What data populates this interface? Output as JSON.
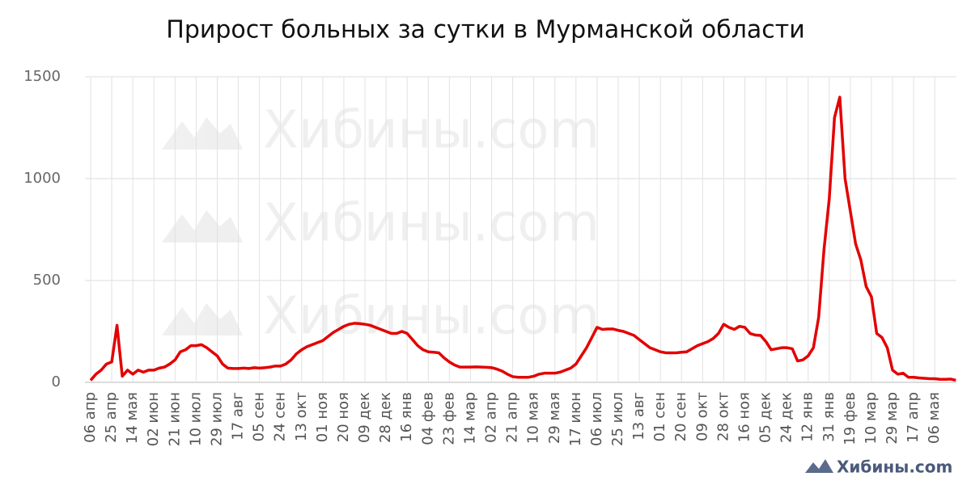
{
  "chart_data": {
    "type": "line",
    "title": "Прирост больных за сутки в Мурманской области",
    "watermark": "Хибины.com",
    "categories": [
      "06 апр",
      null,
      null,
      null,
      "25 апр",
      null,
      null,
      null,
      "14 мая",
      null,
      null,
      null,
      "02 июн",
      null,
      null,
      null,
      "21 июн",
      null,
      null,
      null,
      "10 июл",
      null,
      null,
      null,
      "29 июл",
      null,
      null,
      null,
      "17 авг",
      null,
      null,
      null,
      "05 сен",
      null,
      null,
      null,
      "24 сен",
      null,
      null,
      null,
      "13 окт",
      null,
      null,
      null,
      "01 ноя",
      null,
      null,
      null,
      "20 ноя",
      null,
      null,
      null,
      "09 дек",
      null,
      null,
      null,
      "28 дек",
      null,
      null,
      null,
      "16 янв",
      null,
      null,
      null,
      "04 фев",
      null,
      null,
      null,
      "23 фев",
      null,
      null,
      null,
      "14 мар",
      null,
      null,
      null,
      "02 апр",
      null,
      null,
      null,
      "21 апр",
      null,
      null,
      null,
      "10 мая",
      null,
      null,
      null,
      "29 мая",
      null,
      null,
      null,
      "17 июн",
      null,
      null,
      null,
      "06 июл",
      null,
      null,
      null,
      "25 июл",
      null,
      null,
      null,
      "13 авг",
      null,
      null,
      null,
      "01 сен",
      null,
      null,
      null,
      "20 сен",
      null,
      null,
      null,
      "09 окт",
      null,
      null,
      null,
      "28 окт",
      null,
      null,
      null,
      "16 ноя",
      null,
      null,
      null,
      "05 дек",
      null,
      null,
      null,
      "24 дек",
      null,
      null,
      null,
      "12 янв",
      null,
      null,
      null,
      "31 янв",
      null,
      null,
      null,
      "19 фев",
      null,
      null,
      null,
      "10 мар",
      null,
      null,
      null,
      "29 мар",
      null,
      null,
      null,
      "17 апр",
      null,
      null,
      null,
      "06 мая",
      null,
      null,
      null,
      null
    ],
    "series": [
      {
        "name": "Прирост",
        "color": "#e30000",
        "values": [
          10,
          40,
          60,
          90,
          100,
          280,
          30,
          60,
          40,
          60,
          50,
          60,
          60,
          70,
          75,
          90,
          110,
          150,
          160,
          180,
          180,
          185,
          170,
          150,
          130,
          90,
          70,
          68,
          68,
          70,
          68,
          72,
          70,
          72,
          75,
          80,
          80,
          90,
          110,
          140,
          160,
          175,
          185,
          195,
          205,
          225,
          245,
          260,
          275,
          285,
          290,
          288,
          285,
          280,
          270,
          260,
          250,
          240,
          240,
          250,
          240,
          210,
          180,
          160,
          150,
          148,
          145,
          120,
          100,
          85,
          75,
          75,
          75,
          76,
          75,
          74,
          72,
          65,
          55,
          40,
          28,
          25,
          25,
          25,
          30,
          40,
          45,
          45,
          45,
          50,
          60,
          70,
          90,
          130,
          170,
          220,
          270,
          260,
          262,
          262,
          255,
          250,
          240,
          230,
          210,
          190,
          170,
          160,
          150,
          145,
          145,
          145,
          148,
          150,
          165,
          180,
          190,
          200,
          215,
          240,
          285,
          270,
          260,
          275,
          270,
          240,
          232,
          230,
          200,
          160,
          165,
          170,
          170,
          165,
          105,
          110,
          130,
          170,
          320,
          650,
          900,
          1300,
          1400,
          1000,
          840,
          680,
          600,
          470,
          420,
          240,
          220,
          170,
          60,
          40,
          45,
          25,
          25,
          22,
          20,
          18,
          18,
          15,
          15,
          16,
          10
        ]
      }
    ],
    "ylim": [
      0,
      1500
    ],
    "yticks": [
      0,
      500,
      1000,
      1500
    ],
    "grid": true
  }
}
